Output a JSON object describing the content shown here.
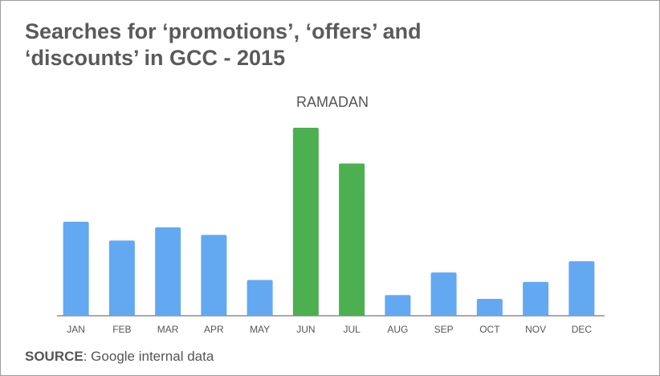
{
  "chart_data": {
    "type": "bar",
    "title": "Searches for ‘promotions’, ‘offers’ and ‘discounts’ in GCC - 2015",
    "annotation": "RAMADAN",
    "categories": [
      "JAN",
      "FEB",
      "MAR",
      "APR",
      "MAY",
      "JUN",
      "JUL",
      "AUG",
      "SEP",
      "OCT",
      "NOV",
      "DEC"
    ],
    "values": [
      50,
      40,
      47,
      43,
      19,
      100,
      81,
      11,
      23,
      9,
      18,
      29
    ],
    "colors": [
      "#63a9f2",
      "#63a9f2",
      "#63a9f2",
      "#63a9f2",
      "#63a9f2",
      "#4caf50",
      "#4caf50",
      "#63a9f2",
      "#63a9f2",
      "#63a9f2",
      "#63a9f2",
      "#63a9f2"
    ],
    "ylim": [
      0,
      100
    ],
    "source_label": "SOURCE",
    "source_text": ": Google internal data"
  }
}
